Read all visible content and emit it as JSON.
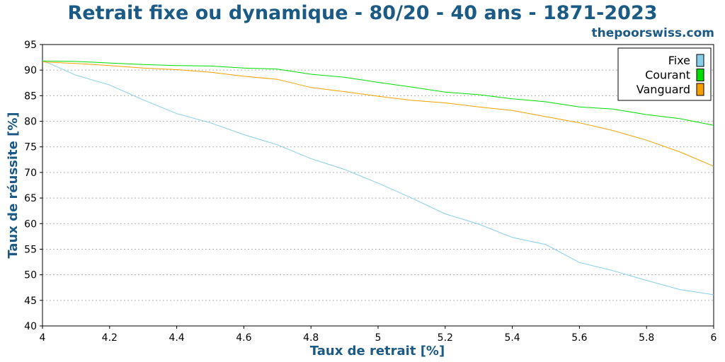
{
  "chart_data": {
    "type": "line",
    "title": "Retrait fixe ou dynamique - 80/20 - 40 ans - 1871-2023",
    "brand": "thepoorswiss.com",
    "xlabel": "Taux de retrait [%]",
    "ylabel": "Taux de réussite [%]",
    "xlim": [
      4,
      6
    ],
    "ylim": [
      40,
      95
    ],
    "xticks": [
      4,
      4.2,
      4.4,
      4.6,
      4.8,
      5,
      5.2,
      5.4,
      5.6,
      5.8,
      6
    ],
    "xtick_labels": [
      "4",
      "4.2",
      "4.4",
      "4.6",
      "4.8",
      "5",
      "5.2",
      "5.4",
      "5.6",
      "5.8",
      "6"
    ],
    "yticks": [
      40,
      45,
      50,
      55,
      60,
      65,
      70,
      75,
      80,
      85,
      90,
      95
    ],
    "ytick_labels": [
      "40",
      "45",
      "50",
      "55",
      "60",
      "65",
      "70",
      "75",
      "80",
      "85",
      "90",
      "95"
    ],
    "grid": "horizontal dotted",
    "legend_position": "top-right",
    "x": [
      4.0,
      4.1,
      4.2,
      4.3,
      4.4,
      4.5,
      4.6,
      4.7,
      4.8,
      4.9,
      5.0,
      5.1,
      5.2,
      5.3,
      5.4,
      5.5,
      5.6,
      5.7,
      5.8,
      5.9,
      6.0
    ],
    "series": [
      {
        "name": "Fixe",
        "color": "#87ceeb",
        "values": [
          91.9,
          89.0,
          87.1,
          84.2,
          81.5,
          79.7,
          77.4,
          75.4,
          72.7,
          70.6,
          67.9,
          65.0,
          61.9,
          59.9,
          57.3,
          55.9,
          52.4,
          50.8,
          48.9,
          47.1,
          46.1
        ]
      },
      {
        "name": "Courant",
        "color": "#00dd00",
        "values": [
          91.8,
          91.7,
          91.4,
          91.1,
          90.9,
          90.8,
          90.4,
          90.2,
          89.2,
          88.6,
          87.6,
          86.7,
          85.7,
          85.2,
          84.4,
          83.8,
          82.8,
          82.4,
          81.3,
          80.5,
          79.2
        ]
      },
      {
        "name": "Vanguard",
        "color": "#f5a000",
        "values": [
          91.6,
          91.3,
          90.9,
          90.4,
          90.1,
          89.6,
          88.8,
          88.2,
          86.6,
          85.8,
          84.9,
          84.1,
          83.6,
          82.8,
          82.1,
          80.9,
          79.7,
          78.2,
          76.3,
          74.0,
          71.2
        ]
      }
    ]
  }
}
